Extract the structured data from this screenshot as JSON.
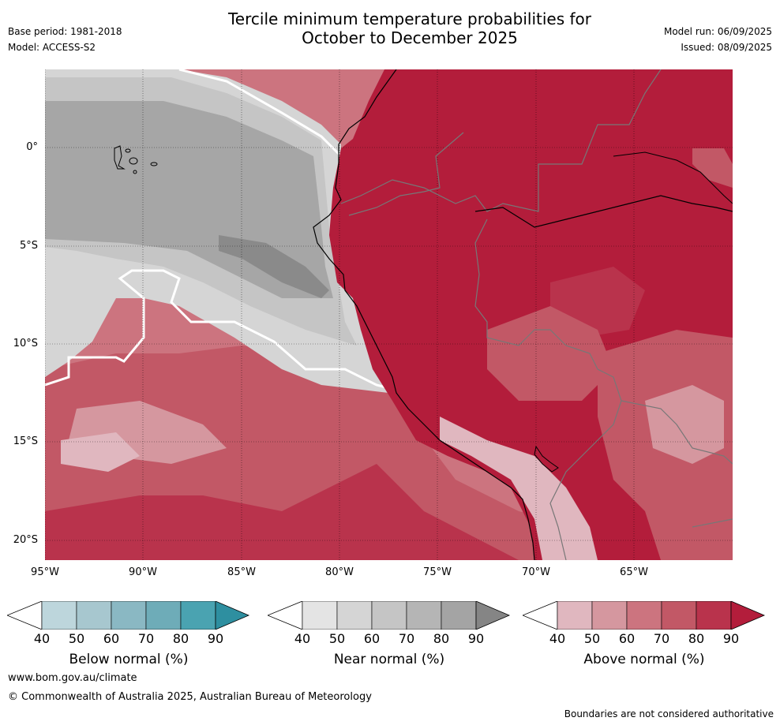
{
  "title": {
    "line1": "Tercile minimum temperature probabilities for",
    "line2": "October to December 2025"
  },
  "meta_left": {
    "base_period": "Base period: 1981-2018",
    "model": "Model: ACCESS-S2"
  },
  "meta_right": {
    "model_run": "Model run: 06/09/2025",
    "issued": "Issued: 08/09/2025"
  },
  "map": {
    "lat_labels": [
      "0°",
      "5°S",
      "10°S",
      "15°S",
      "20°S"
    ],
    "lon_labels": [
      "95°W",
      "90°W",
      "85°W",
      "80°W",
      "75°W",
      "70°W",
      "65°W"
    ],
    "land_color": "#b31d3b",
    "near_normal_color": "#a6a6a6"
  },
  "colorbars": [
    {
      "label": "Below normal (%)",
      "ticks": [
        "40",
        "50",
        "60",
        "70",
        "80",
        "90"
      ],
      "colors": [
        "#bdd6dc",
        "#a7c7cf",
        "#8ab8c3",
        "#6eacb8",
        "#4aa3b1",
        "#2e8fa0"
      ]
    },
    {
      "label": "Near normal (%)",
      "ticks": [
        "40",
        "50",
        "60",
        "70",
        "80",
        "90"
      ],
      "colors": [
        "#e4e4e4",
        "#d5d5d5",
        "#c5c5c5",
        "#b5b5b5",
        "#a4a4a4",
        "#858585"
      ]
    },
    {
      "label": "Above normal (%)",
      "ticks": [
        "40",
        "50",
        "60",
        "70",
        "80",
        "90"
      ],
      "colors": [
        "#e0b7bf",
        "#d5979f",
        "#cc747f",
        "#c25866",
        "#b9334c",
        "#b31d3b"
      ]
    }
  ],
  "footer": {
    "url": "www.bom.gov.au/climate",
    "copyright": "© Commonwealth of Australia 2025, Australian Bureau of Meteorology",
    "disclaimer": "Boundaries are not considered authoritative"
  }
}
